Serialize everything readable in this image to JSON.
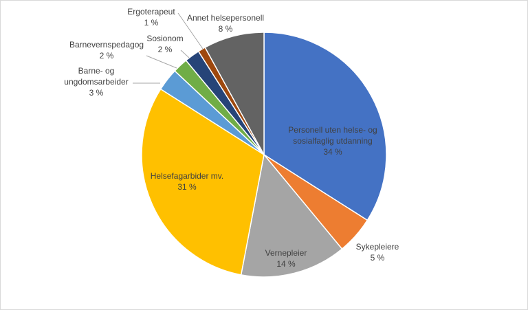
{
  "chart_data": {
    "type": "pie",
    "categories": [
      "Personell uten helse- og sosialfaglig utdanning",
      "Sykepleiere",
      "Vernepleier",
      "Helsefagarbider mv.",
      "Barne- og ungdomsarbeider",
      "Barnevernspedagog",
      "Sosionom",
      "Ergoterapeut",
      "Annet helsepersonell"
    ],
    "values": [
      34,
      5,
      14,
      31,
      3,
      2,
      2,
      1,
      8
    ],
    "value_labels": [
      "34 %",
      "5 %",
      "14 %",
      "31 %",
      "3 %",
      "2 %",
      "2 %",
      "1 %",
      "8 %"
    ],
    "colors": [
      "#4472c4",
      "#ed7d31",
      "#a5a5a5",
      "#ffc000",
      "#5b9bd5",
      "#70ad47",
      "#264478",
      "#9e480e",
      "#636363"
    ]
  }
}
